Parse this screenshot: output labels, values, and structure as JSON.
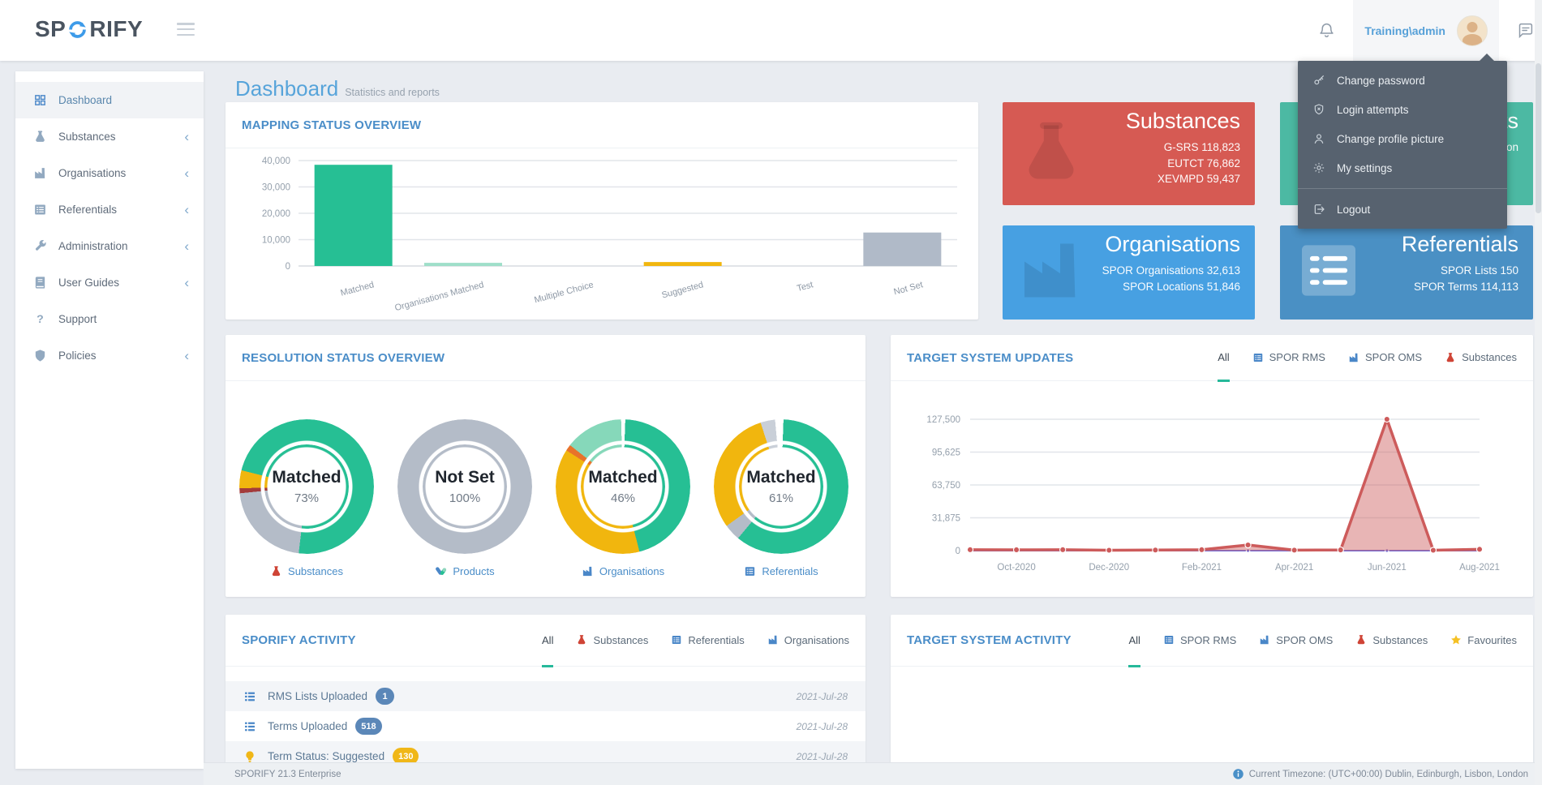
{
  "navbar": {
    "logo_left": "SP",
    "logo_right": "RIFY",
    "username": "Training\\admin"
  },
  "user_menu": {
    "items": [
      {
        "icon": "key-icon",
        "label": "Change password"
      },
      {
        "icon": "shield-x-icon",
        "label": "Login attempts"
      },
      {
        "icon": "user-icon",
        "label": "Change profile picture"
      },
      {
        "icon": "gear-icon",
        "label": "My settings"
      }
    ],
    "logout": {
      "icon": "logout-icon",
      "label": "Logout"
    }
  },
  "sidebar": {
    "items": [
      {
        "icon": "dashboard-grid-icon",
        "label": "Dashboard",
        "active": true,
        "chevron": false
      },
      {
        "icon": "flask-icon",
        "label": "Substances",
        "chevron": true
      },
      {
        "icon": "factory-icon",
        "label": "Organisations",
        "chevron": true
      },
      {
        "icon": "list-icon",
        "label": "Referentials",
        "chevron": true
      },
      {
        "icon": "wrench-icon",
        "label": "Administration",
        "chevron": true
      },
      {
        "icon": "book-icon",
        "label": "User Guides",
        "chevron": true
      },
      {
        "icon": "question-icon",
        "label": "Support",
        "chevron": false
      },
      {
        "icon": "shield-icon",
        "label": "Policies",
        "chevron": true
      }
    ]
  },
  "page": {
    "title": "Dashboard",
    "subtitle": "Statistics and reports"
  },
  "stat_cards": [
    {
      "id": "substances",
      "title": "Substances",
      "lines": [
        "G-SRS 118,823",
        "EUTCT 76,862",
        "XEVMPD 59,437"
      ],
      "color": "#d65a53",
      "icon": "flask-icon",
      "wm": "rgba(0,0,0,0.10)"
    },
    {
      "id": "products",
      "title": "Products",
      "lines": [
        "XEVMPD Production"
      ],
      "color": "#4cb9a3",
      "icon": "pill-wm-icon",
      "wm": "rgba(0,0,0,0.09)"
    },
    {
      "id": "organisations",
      "title": "Organisations",
      "lines": [
        "SPOR Organisations 32,613",
        "SPOR Locations 51,846"
      ],
      "color": "#47a0e2",
      "icon": "factory-icon",
      "wm": "rgba(0,0,0,0.10)"
    },
    {
      "id": "referentials",
      "title": "Referentials",
      "lines": [
        "SPOR Lists 150",
        "SPOR Terms 114,113"
      ],
      "color": "#4a90c4",
      "icon": "list-icon",
      "wm": "rgba(255,255,255,0.25)"
    }
  ],
  "mapping_card": {
    "title": "MAPPING STATUS OVERVIEW",
    "chart_data": {
      "type": "bar",
      "categories": [
        "Matched",
        "Organisations Matched",
        "Multiple Choice",
        "Suggested",
        "Test",
        "Not Set"
      ],
      "values": [
        38400,
        1200,
        0,
        1500,
        0,
        12700
      ],
      "colors": [
        "#26bf94",
        "#9fdfc9",
        "#26bf94",
        "#f1b60e",
        "#b0bac8",
        "#b0bac8"
      ],
      "ylim": [
        0,
        40000
      ],
      "yticks": [
        0,
        10000,
        20000,
        30000,
        40000
      ],
      "grid": true
    }
  },
  "resolution_card": {
    "title": "RESOLUTION STATUS OVERVIEW",
    "donuts": [
      {
        "status": "Matched",
        "percent": "73%",
        "label": "Substances",
        "icon": "flask-icon",
        "icon_color": "#cf4436",
        "start": 284,
        "segments": [
          {
            "color": "#26bf94",
            "pct": 73
          },
          {
            "color": "#b4bcc8",
            "pct": 21.5
          },
          {
            "color": "#a33b3b",
            "pct": 1.2
          },
          {
            "color": "#f1b60e",
            "pct": 4.3
          }
        ]
      },
      {
        "status": "Not Set",
        "percent": "100%",
        "label": "Products",
        "icon": "pills-icon",
        "icon_color": "#4a87c8",
        "start": 0,
        "segments": [
          {
            "color": "#b4bcc8",
            "pct": 100
          }
        ]
      },
      {
        "status": "Matched",
        "percent": "46%",
        "label": "Organisations",
        "icon": "factory-icon",
        "icon_color": "#4a87c8",
        "start": 2,
        "segments": [
          {
            "color": "#26bf94",
            "pct": 45.5
          },
          {
            "color": "#f1b60e",
            "pct": 38
          },
          {
            "color": "#e8732a",
            "pct": 1.5
          },
          {
            "color": "#86d8ba",
            "pct": 14
          },
          {
            "color": "#ffffff",
            "pct": 1
          }
        ]
      },
      {
        "status": "Matched",
        "percent": "61%",
        "label": "Referentials",
        "icon": "list-icon",
        "icon_color": "#4a87c8",
        "start": 2,
        "segments": [
          {
            "color": "#26bf94",
            "pct": 60.5
          },
          {
            "color": "#b4bcc8",
            "pct": 4
          },
          {
            "color": "#f1b60e",
            "pct": 30
          },
          {
            "color": "#c9cfd8",
            "pct": 3.5
          },
          {
            "color": "#ffffff",
            "pct": 1
          }
        ]
      }
    ]
  },
  "updates_card": {
    "title": "TARGET SYSTEM UPDATES",
    "tabs": [
      {
        "label": "All",
        "active": true
      },
      {
        "label": "SPOR RMS",
        "icon": "list-icon",
        "icon_color": "#4a87c8"
      },
      {
        "label": "SPOR OMS",
        "icon": "factory-icon",
        "icon_color": "#4a87c8"
      },
      {
        "label": "Substances",
        "icon": "flask-icon",
        "icon_color": "#cf4436"
      }
    ],
    "chart_data": {
      "type": "area",
      "x": [
        "Sep-2020",
        "Oct-2020",
        "Nov-2020",
        "Dec-2020",
        "Jan-2021",
        "Feb-2021",
        "Mar-2021",
        "Apr-2021",
        "May-2021",
        "Jun-2021",
        "Jul-2021",
        "Aug-2021"
      ],
      "xtick_labels": [
        "Oct-2020",
        "Dec-2020",
        "Feb-2021",
        "Apr-2021",
        "Jun-2021",
        "Aug-2021"
      ],
      "series": [
        {
          "name": "flat-blue",
          "color": "#58b7e8",
          "values": [
            0,
            0,
            0,
            0,
            0,
            0,
            0,
            0,
            0,
            0,
            0,
            0
          ]
        },
        {
          "name": "flat-purple",
          "color": "#7b6fd0",
          "values": [
            0,
            0,
            0,
            0,
            0,
            0,
            0,
            0,
            0,
            0,
            0,
            0
          ],
          "dots": true
        },
        {
          "name": "updates",
          "color": "#cd5b5b",
          "fill": "rgba(205,91,91,0.45)",
          "values": [
            900,
            800,
            900,
            400,
            600,
            900,
            5500,
            500,
            700,
            127500,
            400,
            1300
          ],
          "dots": true
        }
      ],
      "ylim": [
        0,
        127500
      ],
      "yticks": [
        0,
        31875,
        63750,
        95625,
        127500
      ],
      "grid": true,
      "legend": "none"
    }
  },
  "activity_card": {
    "title": "SPORIFY ACTIVITY",
    "tabs": [
      {
        "label": "All",
        "active": true
      },
      {
        "label": "Substances",
        "icon": "flask-icon",
        "icon_color": "#cf4436"
      },
      {
        "label": "Referentials",
        "icon": "list-icon",
        "icon_color": "#4a87c8"
      },
      {
        "label": "Organisations",
        "icon": "factory-icon",
        "icon_color": "#4a87c8"
      }
    ],
    "rows": [
      {
        "icon": "list-rows-icon",
        "icon_color": "#4a87c8",
        "label": "RMS Lists Uploaded",
        "badge": "1",
        "badge_color": "#5b87b8",
        "date": "2021-Jul-28",
        "alt": true
      },
      {
        "icon": "list-rows-icon",
        "icon_color": "#4a87c8",
        "label": "Terms Uploaded",
        "badge": "518",
        "badge_color": "#5b87b8",
        "date": "2021-Jul-28",
        "alt": false
      },
      {
        "icon": "bulb-icon",
        "icon_color": "#f0b718",
        "label": "Term Status: Suggested",
        "badge": "130",
        "badge_color": "#f0b718",
        "date": "2021-Jul-28",
        "alt": true
      }
    ]
  },
  "target_activity_card": {
    "title": "TARGET SYSTEM ACTIVITY",
    "tabs": [
      {
        "label": "All",
        "active": true
      },
      {
        "label": "SPOR RMS",
        "icon": "list-icon",
        "icon_color": "#4a87c8"
      },
      {
        "label": "SPOR OMS",
        "icon": "factory-icon",
        "icon_color": "#4a87c8"
      },
      {
        "label": "Substances",
        "icon": "flask-icon",
        "icon_color": "#cf4436"
      },
      {
        "label": "Favourites",
        "icon": "star-icon",
        "icon_color": "#f5c125"
      }
    ]
  },
  "footer": {
    "left": "SPORIFY 21.3 Enterprise",
    "right": "Current Timezone: (UTC+00:00) Dublin, Edinburgh, Lisbon, London"
  }
}
